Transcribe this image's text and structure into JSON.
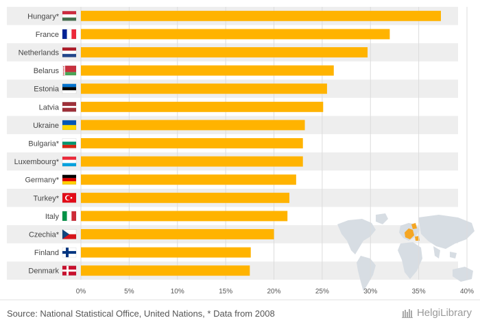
{
  "chart_data": {
    "type": "bar",
    "orientation": "horizontal",
    "categories": [
      "Hungary*",
      "France",
      "Netherlands",
      "Belarus",
      "Estonia",
      "Latvia",
      "Ukraine",
      "Bulgaria*",
      "Luxembourg*",
      "Germany*",
      "Turkey*",
      "Italy",
      "Czechia*",
      "Finland",
      "Denmark"
    ],
    "values": [
      37.3,
      32.0,
      29.7,
      26.2,
      25.5,
      25.1,
      23.2,
      23.0,
      23.0,
      22.3,
      21.6,
      21.4,
      20.0,
      17.6,
      17.5
    ],
    "xlim": [
      0,
      40
    ],
    "xticks": [
      0,
      5,
      10,
      15,
      20,
      25,
      30,
      35,
      40
    ],
    "xtick_labels": [
      "0%",
      "5%",
      "10%",
      "15%",
      "20%",
      "25%",
      "30%",
      "35%",
      "40%"
    ],
    "bar_color": "#FFB300",
    "grid": true,
    "flags": [
      "hungary-flag-icon",
      "france-flag-icon",
      "netherlands-flag-icon",
      "belarus-flag-icon",
      "estonia-flag-icon",
      "latvia-flag-icon",
      "ukraine-flag-icon",
      "bulgaria-flag-icon",
      "luxembourg-flag-icon",
      "germany-flag-icon",
      "turkey-flag-icon",
      "italy-flag-icon",
      "czechia-flag-icon",
      "finland-flag-icon",
      "denmark-flag-icon"
    ]
  },
  "footer": {
    "source": "Source: National Statistical Office, United Nations, * Data from 2008",
    "brand": "HelgiLibrary"
  },
  "decor": {
    "map_icon": "world-map-icon",
    "highlight_color": "#F5A623"
  }
}
